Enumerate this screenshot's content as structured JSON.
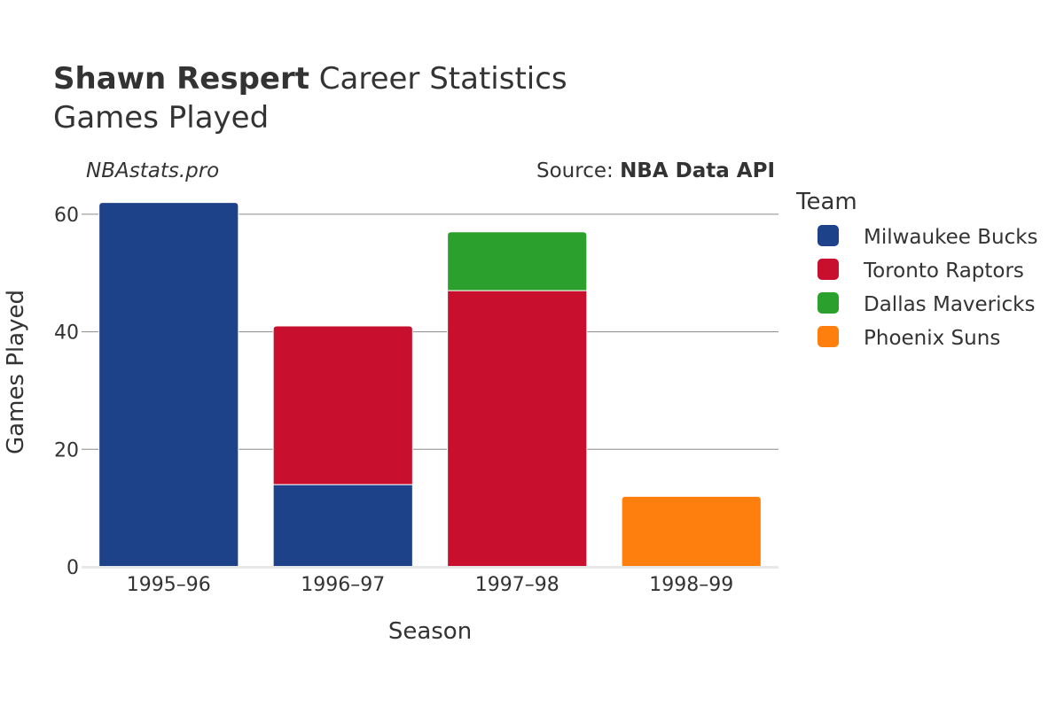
{
  "header": {
    "player_name": "Shawn Respert",
    "title_suffix": " Career Statistics",
    "subtitle": "Games Played"
  },
  "watermark": "NBAstats.pro",
  "source": {
    "prefix": "Source: ",
    "name": "NBA Data API"
  },
  "chart_data": {
    "type": "bar",
    "stacked": true,
    "title": "Shawn Respert Career Statistics",
    "subtitle": "Games Played",
    "xlabel": "Season",
    "ylabel": "Games Played",
    "categories": [
      "1995–96",
      "1996–97",
      "1997–98",
      "1998–99"
    ],
    "ylim": [
      0,
      63
    ],
    "yticks": [
      0,
      20,
      40,
      60
    ],
    "grid": true,
    "legend": {
      "title": "Team",
      "position": "right"
    },
    "series": [
      {
        "name": "Milwaukee Bucks",
        "color": "#1d428a",
        "values": [
          62,
          14,
          0,
          0
        ]
      },
      {
        "name": "Toronto Raptors",
        "color": "#c8102e",
        "values": [
          0,
          27,
          47,
          0
        ]
      },
      {
        "name": "Dallas Mavericks",
        "color": "#2ca02c",
        "values": [
          0,
          0,
          10,
          0
        ]
      },
      {
        "name": "Phoenix Suns",
        "color": "#ff7f0e",
        "values": [
          0,
          0,
          0,
          12
        ]
      }
    ]
  }
}
